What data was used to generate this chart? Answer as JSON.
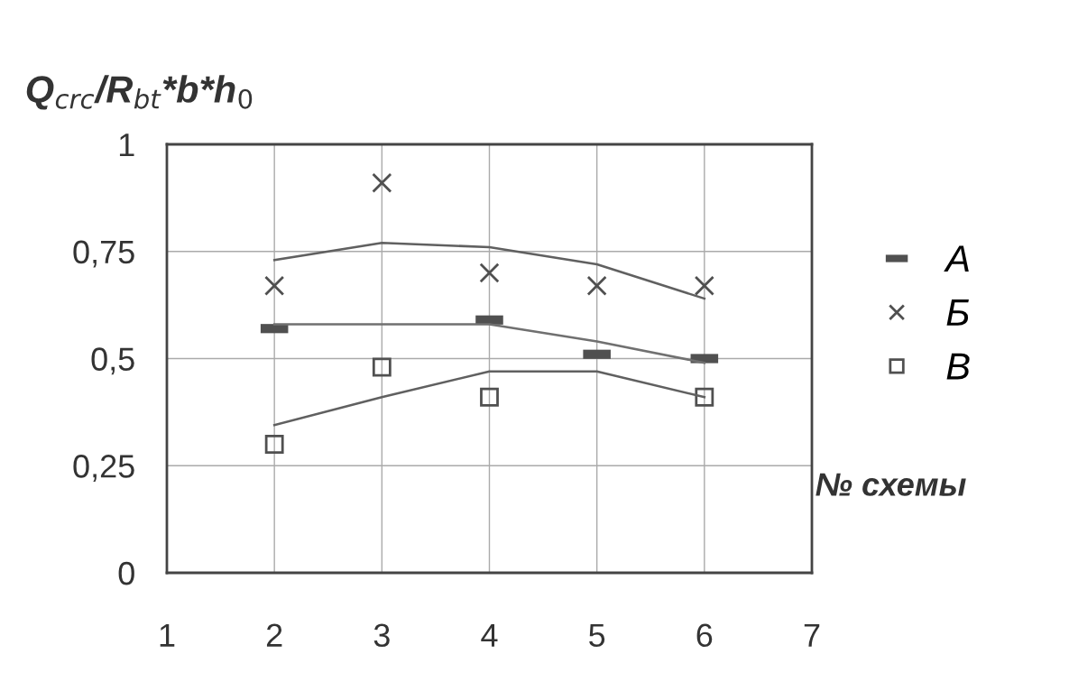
{
  "chart_data": {
    "type": "scatter",
    "ylabel": "Q$_{crc}$/R$_{bt}$*b*h$_{0}$",
    "xlabel": "№ схемы",
    "x": [
      2,
      3,
      4,
      5,
      6
    ],
    "series": [
      {
        "name": "A",
        "color": "#505050",
        "marker": "square",
        "x": [
          2,
          4,
          5,
          6
        ],
        "values": [
          0.57,
          0.59,
          0.51,
          0.5
        ]
      },
      {
        "name": "Б",
        "color": "#505050",
        "marker": "cross",
        "values": [
          0.67,
          0.91,
          0.7,
          0.67,
          0.67
        ]
      },
      {
        "name": "В",
        "color": "#505050",
        "marker": "square",
        "x": [
          2,
          3,
          4,
          6
        ],
        "values": [
          0.3,
          0.48,
          0.41,
          0.41
        ]
      },
      {
        "type": "line",
        "color": "#707070",
        "values": [
          0.58,
          0.58,
          0.58,
          0.54,
          0.49
        ]
      },
      {
        "type": "line",
        "color": "#606060",
        "values": [
          0.73,
          0.77,
          0.76,
          0.72,
          0.64
        ]
      },
      {
        "type": "line",
        "color": "#606060",
        "values": [
          0.345,
          0.41,
          0.47,
          0.47,
          0.41
        ]
      }
    ],
    "xlim": [
      1,
      7
    ],
    "xticks": [
      1,
      2,
      3,
      4,
      5,
      6,
      7
    ],
    "ylim": [
      0,
      1
    ],
    "yticks": [
      0,
      {
        "value": 0.25,
        "label": "0,25"
      },
      {
        "value": 0.5,
        "label": "0,5"
      },
      {
        "value": 0.75,
        "label": "0,75"
      },
      1
    ],
    "grid": true,
    "legend": "right"
  }
}
